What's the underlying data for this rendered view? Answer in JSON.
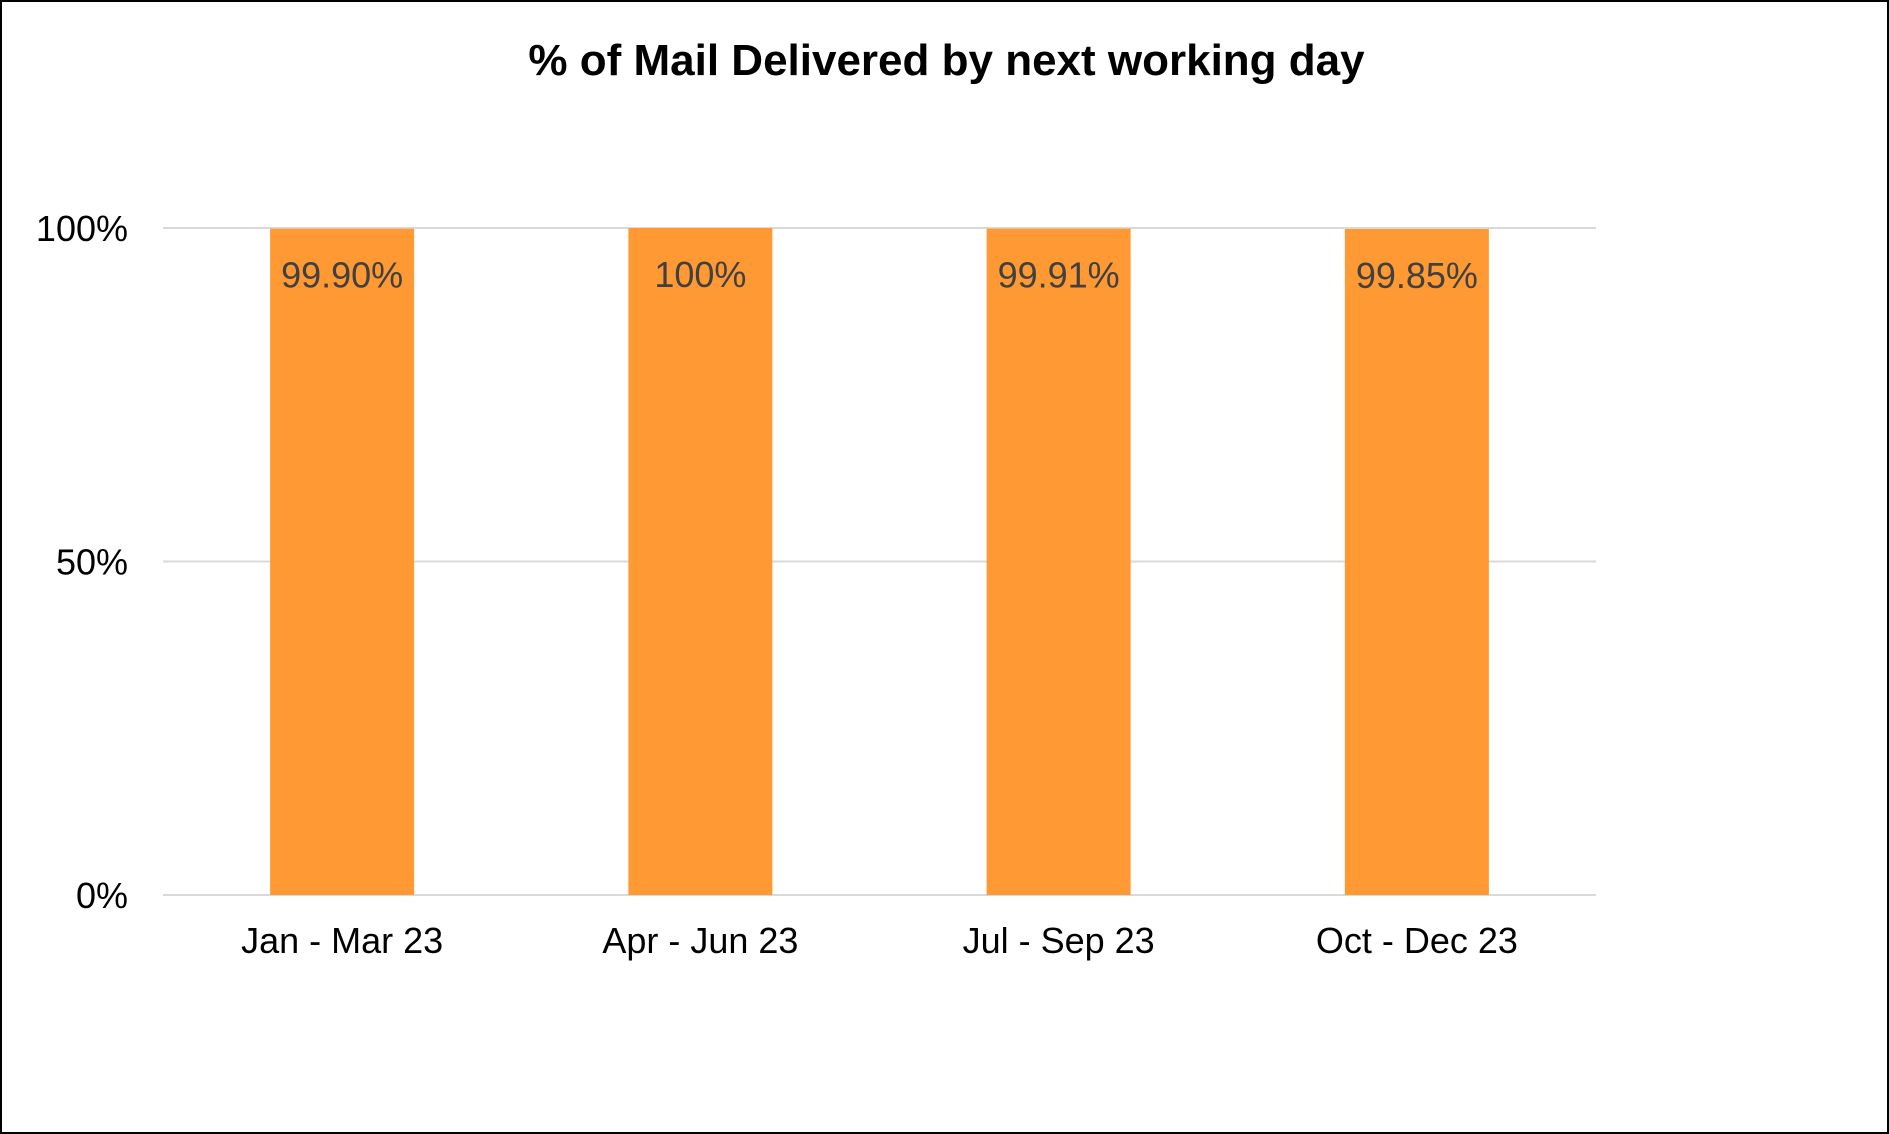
{
  "chart_data": {
    "type": "bar",
    "title": "% of Mail Delivered by next working day",
    "xlabel": "",
    "ylabel": "",
    "categories": [
      "Jan - Mar 23",
      "Apr - Jun 23",
      "Jul - Sep 23",
      "Oct - Dec 23"
    ],
    "values": [
      99.9,
      100,
      99.91,
      99.85
    ],
    "data_labels": [
      "99.90%",
      "100%",
      "99.91%",
      "99.85%"
    ],
    "ylim": [
      0,
      100
    ],
    "yticks": [
      0,
      50,
      100
    ],
    "ytick_labels": [
      "0%",
      "50%",
      "100%"
    ],
    "grid": true,
    "legend": "none",
    "bar_color": "#FF9933",
    "grid_color": "#D9D9D9"
  }
}
